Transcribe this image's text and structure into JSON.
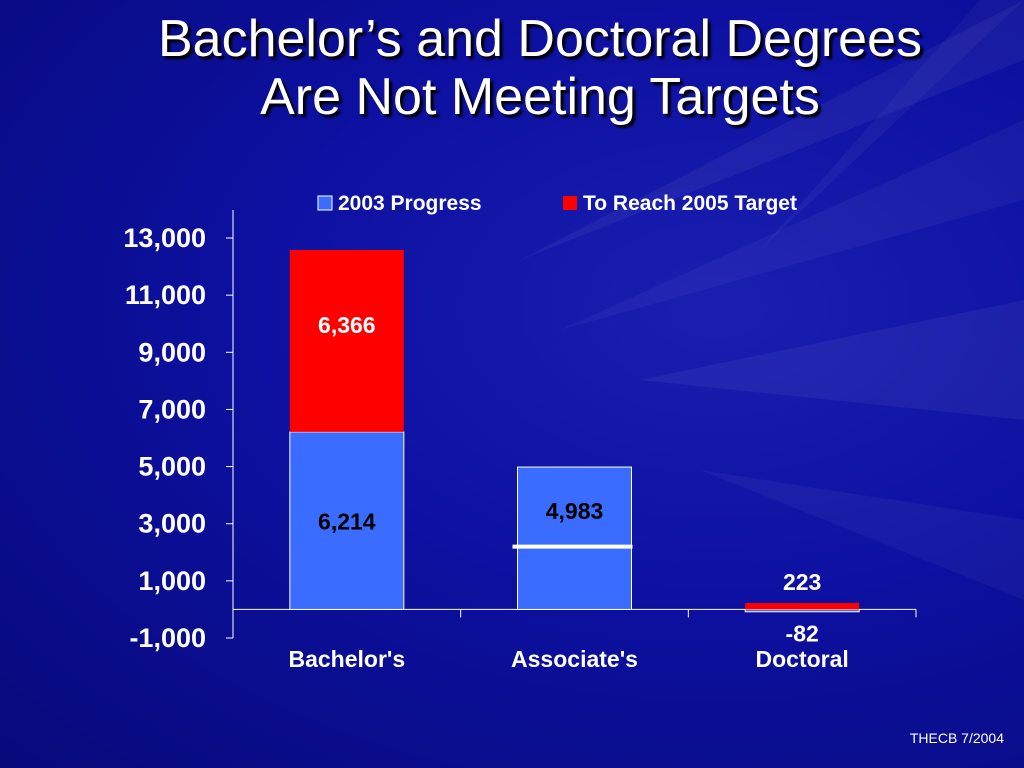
{
  "slide": {
    "title_line1": "Bachelor’s and Doctoral Degrees",
    "title_line2": "Are Not Meeting Targets",
    "footer": "THECB 7/2004"
  },
  "colors": {
    "background": "#0d10a0",
    "progress": "#3a6cff",
    "target": "#ff0000",
    "text": "#ffffff",
    "data_label": "#000000"
  },
  "chart_data": {
    "type": "bar",
    "stacked": true,
    "categories": [
      "Bachelor's",
      "Associate's",
      "Doctoral"
    ],
    "series": [
      {
        "name": "2003 Progress",
        "color": "#3a6cff",
        "values": [
          6214,
          4983,
          -82
        ]
      },
      {
        "name": "To Reach 2005 Target",
        "color": "#ff0000",
        "values": [
          6366,
          0,
          223
        ]
      }
    ],
    "data_labels": [
      {
        "category": "Bachelor's",
        "series": "2003 Progress",
        "text": "6,214"
      },
      {
        "category": "Bachelor's",
        "series": "To Reach 2005 Target",
        "text": "6,366"
      },
      {
        "category": "Associate's",
        "series": "2003 Progress",
        "text": "4,983"
      },
      {
        "category": "Doctoral",
        "series": "To Reach 2005 Target",
        "text": "223"
      },
      {
        "category": "Doctoral",
        "series": "2003 Progress",
        "text": "-82"
      }
    ],
    "target_marker": {
      "category": "Associate's",
      "value": 2200
    },
    "ylim": [
      -1000,
      13000
    ],
    "yticks": [
      -1000,
      1000,
      3000,
      5000,
      7000,
      9000,
      11000,
      13000
    ],
    "ytick_labels": [
      "-1,000",
      "1,000",
      "3,000",
      "5,000",
      "7,000",
      "9,000",
      "11,000",
      "13,000"
    ],
    "legend_position": "top",
    "grid": false
  }
}
